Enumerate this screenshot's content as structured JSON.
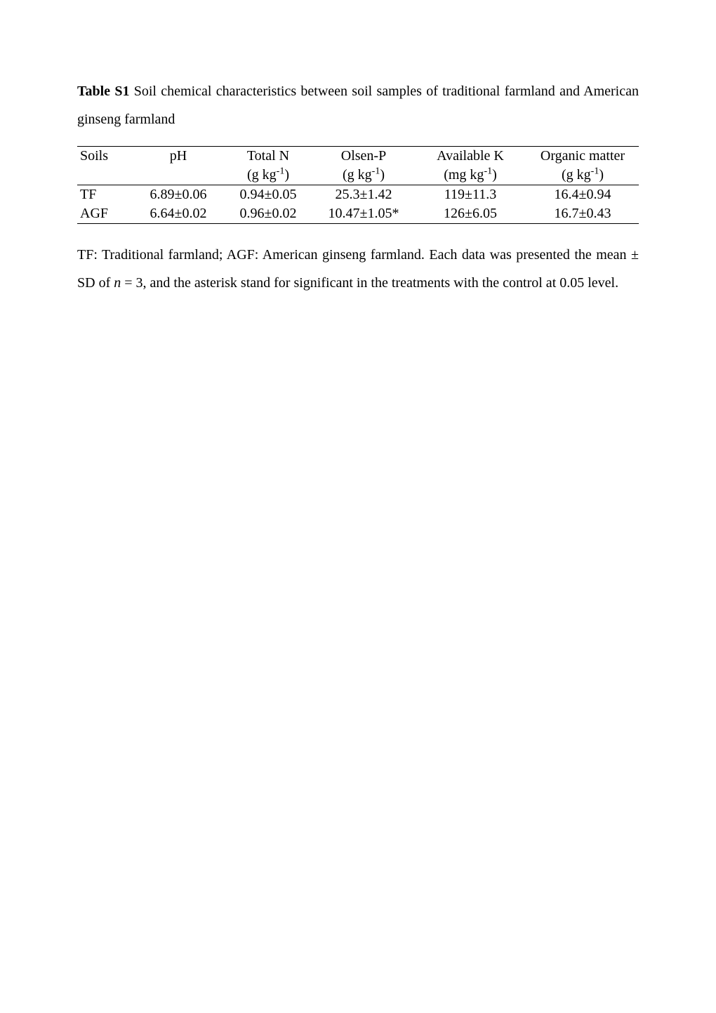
{
  "caption": {
    "label": "Table S1",
    "text": " Soil chemical characteristics between soil samples of traditional farmland and American ginseng farmland"
  },
  "table": {
    "columns": {
      "soils": "Soils",
      "ph": "pH",
      "total_n": "Total N",
      "olsen_p": "Olsen-P",
      "available_k": "Available K",
      "organic_matter": "Organic matter"
    },
    "units": {
      "total_n": "(g kg",
      "olsen_p": "(g kg",
      "available_k": "(mg kg",
      "organic_matter": "(g kg",
      "sup": "-1",
      "close": ")"
    },
    "rows": [
      {
        "soils": "TF",
        "ph": "6.89±0.06",
        "total_n": "0.94±0.05",
        "olsen_p": "25.3±1.42",
        "available_k": "119±11.3",
        "organic_matter": "16.4±0.94"
      },
      {
        "soils": "AGF",
        "ph": "6.64±0.02",
        "total_n": "0.96±0.02",
        "olsen_p": "10.47±1.05*",
        "available_k": "126±6.05",
        "organic_matter": "16.7±0.43"
      }
    ]
  },
  "footnote": {
    "part1": "TF: Traditional farmland; AGF: American ginseng farmland. Each data was presented the mean ± SD of ",
    "n_label": "n",
    "part2": " = 3, and the asterisk stand for significant in the treatments with the control at 0.05 level."
  }
}
